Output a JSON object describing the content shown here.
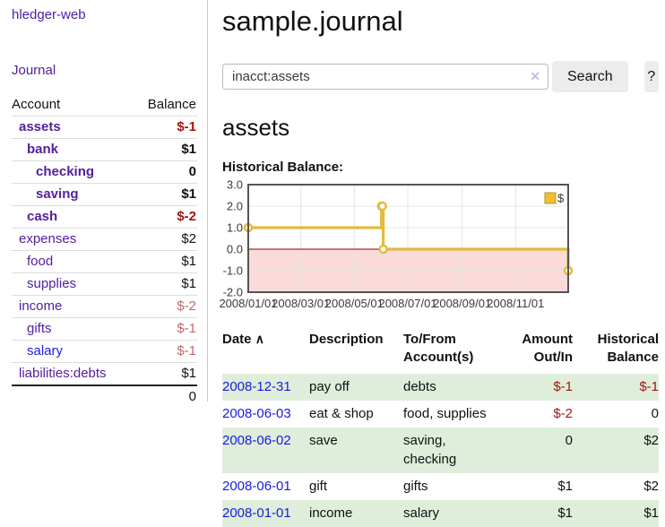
{
  "brand": "hledger-web",
  "nav": {
    "journal_label": "Journal"
  },
  "sidebar": {
    "headers": {
      "account": "Account",
      "balance": "Balance"
    },
    "rows": [
      {
        "name": "assets",
        "balance": "$-1"
      },
      {
        "name": "bank",
        "balance": "$1"
      },
      {
        "name": "checking",
        "balance": "0"
      },
      {
        "name": "saving",
        "balance": "$1"
      },
      {
        "name": "cash",
        "balance": "$-2"
      },
      {
        "name": "expenses",
        "balance": "$2"
      },
      {
        "name": "food",
        "balance": "$1"
      },
      {
        "name": "supplies",
        "balance": "$1"
      },
      {
        "name": "income",
        "balance": "$-2"
      },
      {
        "name": "gifts",
        "balance": "$-1"
      },
      {
        "name": "salary",
        "balance": "$-1"
      },
      {
        "name": "liabilities:debts",
        "balance": "$1"
      }
    ],
    "total": "0"
  },
  "main": {
    "title": "sample.journal",
    "search": {
      "value": "inacct:assets",
      "clear_icon": "✕",
      "button_label": "Search",
      "help_label": "?"
    },
    "account_heading": "assets",
    "chart_title": "Historical Balance:"
  },
  "chart_data": {
    "type": "line",
    "step": true,
    "title": "Historical Balance",
    "series": [
      {
        "name": "$",
        "points": [
          [
            "2008-01-01",
            1
          ],
          [
            "2008-06-01",
            2
          ],
          [
            "2008-06-02",
            2
          ],
          [
            "2008-06-03",
            0
          ],
          [
            "2008-12-31",
            -1
          ]
        ]
      }
    ],
    "x_range": [
      "2008-01-01",
      "2008-12-31"
    ],
    "y_range": [
      -2,
      3
    ],
    "x_ticks": [
      "2008/01/01",
      "2008/03/01",
      "2008/05/01",
      "2008/07/01",
      "2008/09/01",
      "2008/11/01"
    ],
    "y_ticks": [
      "3.0",
      "2.0",
      "1.0",
      "0.0",
      "-1.0",
      "-2.0"
    ],
    "legend": {
      "label": "$",
      "position": "top-right"
    },
    "colors": {
      "line": "#e3bb3e",
      "marker_fill": "#ffffff",
      "below_zero_fill": "#fbdada",
      "zero_line": "#8b0000",
      "grid": "#e4e4e4",
      "border": "#545454",
      "tick_text": "#3a3a3a",
      "legend_swatch": "#eec133",
      "legend_swatch_border": "#b8952b"
    }
  },
  "register": {
    "headers": {
      "date": "Date",
      "sort_icon": "∧",
      "description": "Description",
      "accounts": "To/From Account(s)",
      "amount": "Amount Out/In",
      "balance": "Historical Balance"
    },
    "rows": [
      {
        "date": "2008-12-31",
        "description": "pay off",
        "accounts": "debts",
        "amount": "$-1",
        "balance": "$-1"
      },
      {
        "date": "2008-06-03",
        "description": "eat & shop",
        "accounts": "food, supplies",
        "amount": "$-2",
        "balance": "0"
      },
      {
        "date": "2008-06-02",
        "description": "save",
        "accounts": "saving, checking",
        "amount": "0",
        "balance": "$2"
      },
      {
        "date": "2008-06-01",
        "description": "gift",
        "accounts": "gifts",
        "amount": "$1",
        "balance": "$2"
      },
      {
        "date": "2008-01-01",
        "description": "income",
        "accounts": "salary",
        "amount": "$1",
        "balance": "$1"
      }
    ]
  }
}
